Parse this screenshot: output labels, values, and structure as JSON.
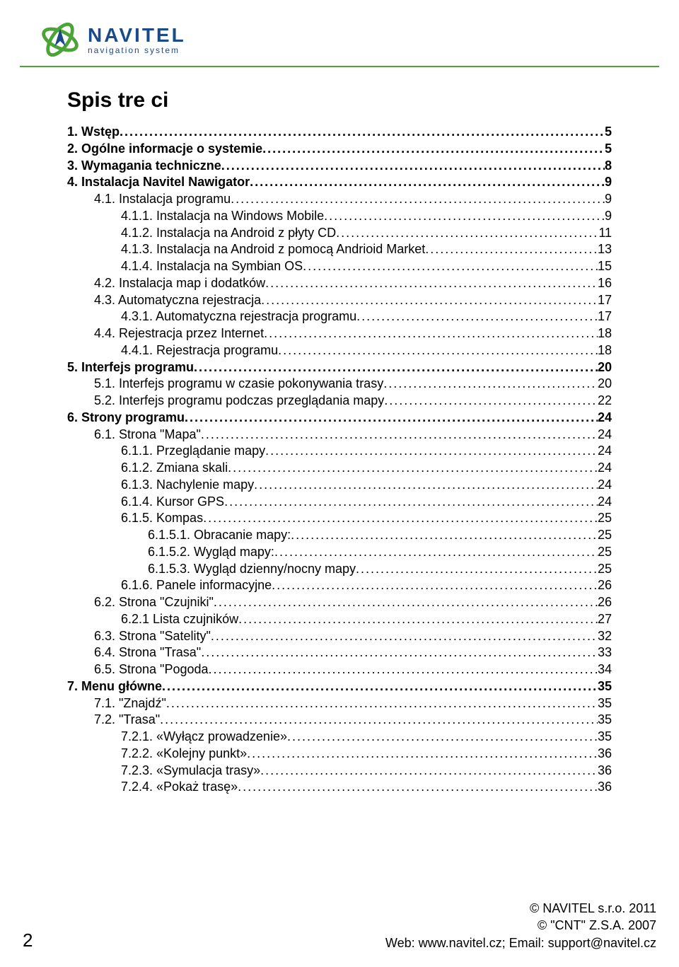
{
  "brand": {
    "name": "NAVITEL",
    "subtitle": "navigation system",
    "logo_colors": {
      "primary": "#4aa536",
      "secondary": "#1a4a8a"
    }
  },
  "title": "Spis tre ci",
  "toc": [
    {
      "label": "1. Wstęp",
      "page": "5",
      "indent": 0,
      "bold": true
    },
    {
      "label": "2. Ogólne informacje o systemie",
      "page": "5",
      "indent": 0,
      "bold": true
    },
    {
      "label": "3. Wymagania techniczne",
      "page": "8",
      "indent": 0,
      "bold": true
    },
    {
      "label": "4. Instalacja Navitel Nawigator",
      "page": "9",
      "indent": 0,
      "bold": true
    },
    {
      "label": "4.1. Instalacja programu",
      "page": "9",
      "indent": 1,
      "bold": false
    },
    {
      "label": "4.1.1. Instalacja na Windows Mobile",
      "page": "9",
      "indent": 2,
      "bold": false
    },
    {
      "label": "4.1.2. Instalacja na Android z płyty CD",
      "page": "11",
      "indent": 2,
      "bold": false
    },
    {
      "label": "4.1.3. Instalacja na Android z pomocą Andrioid Market",
      "page": "13",
      "indent": 2,
      "bold": false
    },
    {
      "label": "4.1.4. Instalacja na Symbian OS",
      "page": "15",
      "indent": 2,
      "bold": false
    },
    {
      "label": "4.2. Instalacja map i dodatków",
      "page": "16",
      "indent": 1,
      "bold": false
    },
    {
      "label": "4.3. Automatyczna rejestracja",
      "page": "17",
      "indent": 1,
      "bold": false
    },
    {
      "label": "4.3.1. Automatyczna rejestracja programu",
      "page": "17",
      "indent": 2,
      "bold": false
    },
    {
      "label": "4.4. Rejestracja przez Internet",
      "page": "18",
      "indent": 1,
      "bold": false
    },
    {
      "label": "4.4.1. Rejestracja programu",
      "page": "18",
      "indent": 2,
      "bold": false
    },
    {
      "label": "5. Interfejs programu",
      "page": "20",
      "indent": 0,
      "bold": true
    },
    {
      "label": "5.1. Interfejs programu w czasie pokonywania trasy",
      "page": "20",
      "indent": 1,
      "bold": false
    },
    {
      "label": "5.2. Interfejs programu podczas przeglądania mapy",
      "page": "22",
      "indent": 1,
      "bold": false
    },
    {
      "label": "6. Strony programu",
      "page": "24",
      "indent": 0,
      "bold": true
    },
    {
      "label": "6.1. Strona \"Mapa\"",
      "page": "24",
      "indent": 1,
      "bold": false
    },
    {
      "label": "6.1.1. Przeglądanie mapy",
      "page": "24",
      "indent": 2,
      "bold": false
    },
    {
      "label": "6.1.2. Zmiana skali",
      "page": "24",
      "indent": 2,
      "bold": false
    },
    {
      "label": "6.1.3. Nachylenie mapy",
      "page": "24",
      "indent": 2,
      "bold": false
    },
    {
      "label": "6.1.4. Kursor GPS",
      "page": "24",
      "indent": 2,
      "bold": false
    },
    {
      "label": "6.1.5. Kompas",
      "page": "25",
      "indent": 2,
      "bold": false
    },
    {
      "label": "6.1.5.1. Obracanie mapy:",
      "page": "25",
      "indent": 3,
      "bold": false
    },
    {
      "label": "6.1.5.2. Wygląd mapy:",
      "page": "25",
      "indent": 3,
      "bold": false
    },
    {
      "label": "6.1.5.3. Wygląd dzienny/nocny mapy",
      "page": "25",
      "indent": 3,
      "bold": false
    },
    {
      "label": "6.1.6. Panele informacyjne",
      "page": "26",
      "indent": 2,
      "bold": false
    },
    {
      "label": "6.2. Strona \"Czujniki\"",
      "page": "26",
      "indent": 1,
      "bold": false
    },
    {
      "label": "6.2.1 Lista czujników",
      "page": "27",
      "indent": 2,
      "bold": false
    },
    {
      "label": "6.3. Strona \"Satelity\"",
      "page": "32",
      "indent": 1,
      "bold": false
    },
    {
      "label": "6.4. Strona \"Trasa\"",
      "page": "33",
      "indent": 1,
      "bold": false
    },
    {
      "label": "6.5. Strona \"Pogoda",
      "page": "34",
      "indent": 1,
      "bold": false
    },
    {
      "label": "7. Menu główne",
      "page": "35",
      "indent": 0,
      "bold": true
    },
    {
      "label": "7.1. \"Znajdź\"",
      "page": "35",
      "indent": 1,
      "bold": false
    },
    {
      "label": "7.2. \"Trasa\"",
      "page": "35",
      "indent": 1,
      "bold": false
    },
    {
      "label": "7.2.1. «Wyłącz prowadzenie»",
      "page": "35",
      "indent": 2,
      "bold": false
    },
    {
      "label": "7.2.2. «Kolejny punkt»",
      "page": "36",
      "indent": 2,
      "bold": false
    },
    {
      "label": "7.2.3. «Symulacja trasy»",
      "page": "36",
      "indent": 2,
      "bold": false
    },
    {
      "label": "7.2.4. «Pokaż trasę»",
      "page": "36",
      "indent": 2,
      "bold": false
    }
  ],
  "footer": {
    "page_number": "2",
    "line1": "© NAVITEL s.r.o. 2011",
    "line2": "© \"CNT\" Z.S.A. 2007",
    "line3": "Web: www.navitel.cz; Email: support@navitel.cz"
  }
}
